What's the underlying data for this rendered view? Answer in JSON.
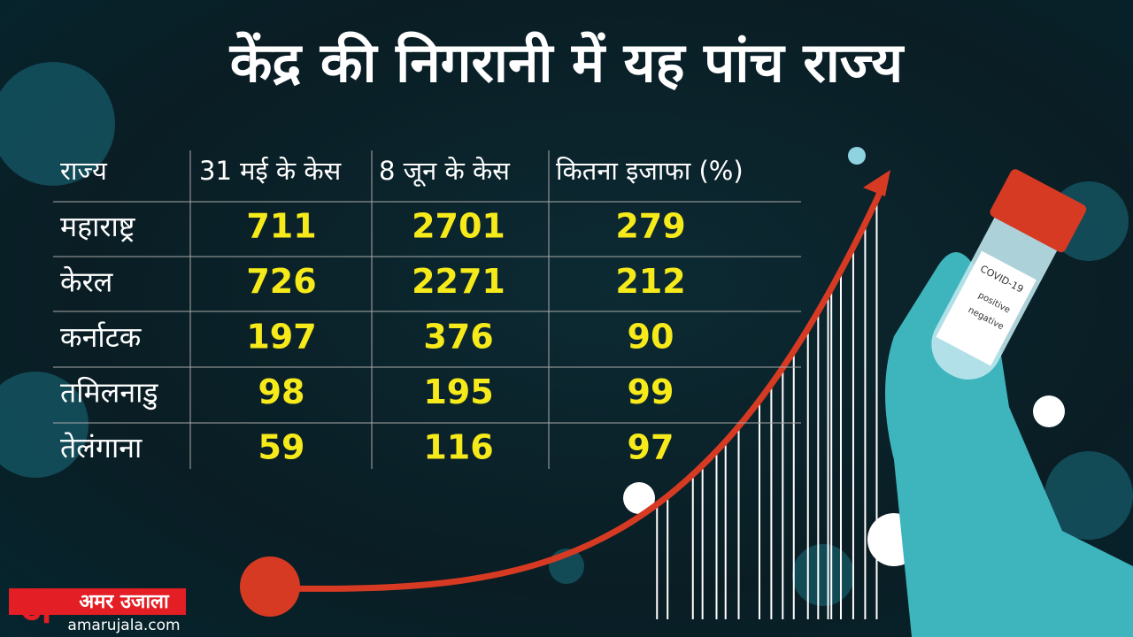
{
  "header": {
    "title": "केंद्र की निगरानी में यह पांच राज्य"
  },
  "table": {
    "headers": [
      "राज्य",
      "31 मई के केस",
      "8 जून के केस",
      "कितना इजाफा (%)"
    ],
    "rows": [
      [
        "महाराष्ट्र",
        711,
        2701,
        279
      ],
      [
        "केरल",
        726,
        2271,
        212
      ],
      [
        "कर्नाटक",
        197,
        376,
        90
      ],
      [
        "तमिलनाडु",
        98,
        195,
        99
      ],
      [
        "तेलंगाना",
        59,
        116,
        97
      ]
    ]
  },
  "test_tube": {
    "label": "COVID-19",
    "options": [
      "positive",
      "negative"
    ]
  },
  "logo": {
    "name": "अमर उजाला",
    "letter": "अ",
    "url": "amarujala.com"
  }
}
